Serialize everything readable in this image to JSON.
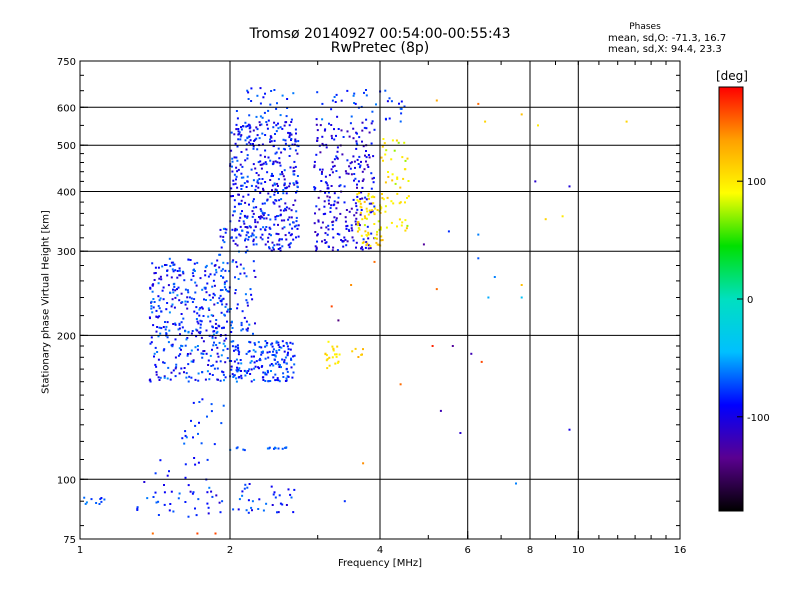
{
  "chart_data": {
    "type": "scatter",
    "title": "Tromsø 20140927 00:54:00-00:55:43",
    "subtitle": "RwPretec (8p)",
    "xlabel": "Frequency [MHz]",
    "ylabel": "Stationary phase Virtual Height [km]",
    "xscale": "log",
    "yscale": "log",
    "xlim": [
      1,
      16
    ],
    "ylim": [
      75,
      750
    ],
    "xticks": [
      1,
      2,
      4,
      6,
      8,
      10,
      16
    ],
    "xtick_labels": [
      "1",
      "2",
      "4",
      "6",
      "8",
      "10",
      "16"
    ],
    "xgrid": [
      2,
      4,
      6,
      8,
      10
    ],
    "yticks": [
      75,
      100,
      200,
      300,
      400,
      500,
      600,
      750
    ],
    "ytick_labels": [
      "75",
      "100",
      "200",
      "300",
      "400",
      "500",
      "600",
      "750"
    ],
    "ygrid": [
      100,
      200,
      300,
      400,
      500,
      600
    ],
    "grid": true,
    "phase_stats": {
      "title": "Phases",
      "o_line": "mean, sd,O: -71.3, 16.7",
      "x_line": "mean, sd,X:  94.4, 23.3"
    },
    "colorbar": {
      "label": "[deg]",
      "range": [
        -180,
        180
      ],
      "ticks": [
        100,
        0,
        -100
      ],
      "tick_labels": [
        "100",
        "0",
        "-100"
      ],
      "colors": [
        "#000000",
        "#5a0090",
        "#0000ff",
        "#00c0ff",
        "#00e0c0",
        "#00e000",
        "#ffff00",
        "#ffa000",
        "#ff0000"
      ]
    },
    "clusters": [
      {
        "f": [
          1.0,
          1.12
        ],
        "h": [
          88,
          92
        ],
        "n": 10,
        "phase": [
          -90,
          -55
        ]
      },
      {
        "f": [
          1.3,
          1.95
        ],
        "h": [
          82,
          100
        ],
        "n": 40,
        "phase": [
          -110,
          -60
        ]
      },
      {
        "f": [
          1.95,
          2.7
        ],
        "h": [
          85,
          98
        ],
        "n": 35,
        "phase": [
          -110,
          -60
        ]
      },
      {
        "f": [
          1.4,
          1.9
        ],
        "h": [
          100,
          112
        ],
        "n": 10,
        "phase": [
          -100,
          -70
        ]
      },
      {
        "f": [
          2.0,
          2.6
        ],
        "h": [
          115,
          117
        ],
        "n": 16,
        "phase": [
          -80,
          -60
        ]
      },
      {
        "f": [
          1.6,
          1.95
        ],
        "h": [
          118,
          150
        ],
        "n": 20,
        "phase": [
          -90,
          -60
        ]
      },
      {
        "f": [
          1.38,
          2.0
        ],
        "h": [
          160,
          290
        ],
        "n": 380,
        "phase": [
          -110,
          -55
        ]
      },
      {
        "f": [
          2.0,
          2.7
        ],
        "h": [
          160,
          195
        ],
        "n": 180,
        "phase": [
          -100,
          -55
        ]
      },
      {
        "f": [
          1.9,
          2.25
        ],
        "h": [
          200,
          340
        ],
        "n": 90,
        "phase": [
          -110,
          -60
        ]
      },
      {
        "f": [
          2.0,
          2.75
        ],
        "h": [
          300,
          560
        ],
        "n": 420,
        "phase": [
          -115,
          -65
        ]
      },
      {
        "f": [
          2.05,
          2.7
        ],
        "h": [
          560,
          660
        ],
        "n": 30,
        "phase": [
          -100,
          -60
        ]
      },
      {
        "f": [
          2.95,
          3.9
        ],
        "h": [
          300,
          560
        ],
        "n": 260,
        "phase": [
          -125,
          -75
        ]
      },
      {
        "f": [
          2.95,
          4.5
        ],
        "h": [
          560,
          660
        ],
        "n": 40,
        "phase": [
          -100,
          -60
        ]
      },
      {
        "f": [
          3.6,
          4.05
        ],
        "h": [
          305,
          400
        ],
        "n": 70,
        "phase": [
          80,
          125
        ]
      },
      {
        "f": [
          4.0,
          4.6
        ],
        "h": [
          330,
          520
        ],
        "n": 55,
        "phase": [
          70,
          120
        ]
      },
      {
        "f": [
          3.1,
          3.35
        ],
        "h": [
          170,
          195
        ],
        "n": 22,
        "phase": [
          90,
          115
        ]
      },
      {
        "f": [
          3.5,
          3.7
        ],
        "h": [
          180,
          188
        ],
        "n": 6,
        "phase": [
          110,
          130
        ]
      }
    ],
    "scattered_points": [
      {
        "f": 5.2,
        "h": 620,
        "phase": 130
      },
      {
        "f": 6.3,
        "h": 610,
        "phase": 150
      },
      {
        "f": 6.5,
        "h": 560,
        "phase": 110
      },
      {
        "f": 7.7,
        "h": 580,
        "phase": 120
      },
      {
        "f": 8.3,
        "h": 550,
        "phase": 100
      },
      {
        "f": 12.5,
        "h": 560,
        "phase": 110
      },
      {
        "f": 8.2,
        "h": 420,
        "phase": -110
      },
      {
        "f": 9.6,
        "h": 410,
        "phase": -105
      },
      {
        "f": 8.6,
        "h": 350,
        "phase": 110
      },
      {
        "f": 9.3,
        "h": 355,
        "phase": 100
      },
      {
        "f": 5.5,
        "h": 330,
        "phase": -80
      },
      {
        "f": 6.3,
        "h": 325,
        "phase": -60
      },
      {
        "f": 4.9,
        "h": 310,
        "phase": -130
      },
      {
        "f": 6.3,
        "h": 290,
        "phase": -70
      },
      {
        "f": 6.8,
        "h": 265,
        "phase": -60
      },
      {
        "f": 7.7,
        "h": 255,
        "phase": 120
      },
      {
        "f": 7.7,
        "h": 240,
        "phase": -40
      },
      {
        "f": 5.2,
        "h": 250,
        "phase": 150
      },
      {
        "f": 6.6,
        "h": 240,
        "phase": -50
      },
      {
        "f": 3.9,
        "h": 285,
        "phase": 150
      },
      {
        "f": 3.5,
        "h": 255,
        "phase": 140
      },
      {
        "f": 3.2,
        "h": 230,
        "phase": 160
      },
      {
        "f": 3.3,
        "h": 215,
        "phase": -140
      },
      {
        "f": 5.6,
        "h": 190,
        "phase": -130
      },
      {
        "f": 5.1,
        "h": 190,
        "phase": 170
      },
      {
        "f": 6.1,
        "h": 183,
        "phase": -120
      },
      {
        "f": 6.4,
        "h": 176,
        "phase": 160
      },
      {
        "f": 4.4,
        "h": 158,
        "phase": 150
      },
      {
        "f": 5.3,
        "h": 139,
        "phase": -120
      },
      {
        "f": 5.8,
        "h": 125,
        "phase": -110
      },
      {
        "f": 9.6,
        "h": 127,
        "phase": -100
      },
      {
        "f": 3.7,
        "h": 108,
        "phase": 140
      },
      {
        "f": 7.5,
        "h": 98,
        "phase": -60
      },
      {
        "f": 3.4,
        "h": 90,
        "phase": -80
      },
      {
        "f": 1.4,
        "h": 77,
        "phase": 150
      },
      {
        "f": 1.72,
        "h": 77,
        "phase": 160
      },
      {
        "f": 1.87,
        "h": 77,
        "phase": 160
      },
      {
        "f": 2.55,
        "h": 635,
        "phase": -60
      },
      {
        "f": 4.1,
        "h": 650,
        "phase": -70
      }
    ]
  }
}
